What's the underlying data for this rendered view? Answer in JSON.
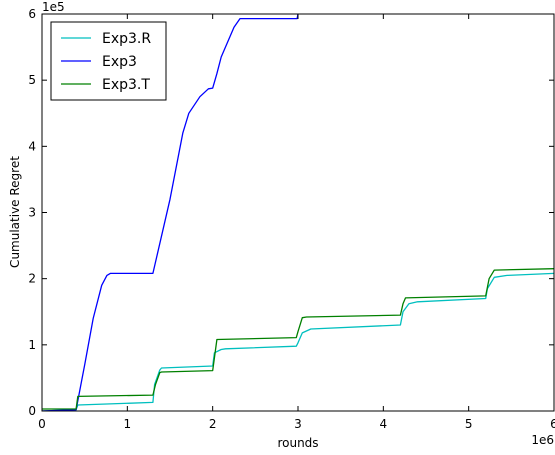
{
  "chart_data": {
    "type": "line",
    "xlabel": "rounds",
    "ylabel": "Cumulative Regret",
    "x_offset_label": "1e6",
    "y_offset_label": "1e5",
    "x_scale": 1000000,
    "y_scale": 100000,
    "xlim": [
      0,
      6000000
    ],
    "ylim": [
      0,
      600000
    ],
    "x_ticks": [
      0,
      1000000,
      2000000,
      3000000,
      4000000,
      5000000,
      6000000
    ],
    "x_tick_labels": [
      "0",
      "1",
      "2",
      "3",
      "4",
      "5",
      "6"
    ],
    "y_ticks": [
      0,
      100000,
      200000,
      300000,
      400000,
      500000,
      600000
    ],
    "y_tick_labels": [
      "0",
      "1",
      "2",
      "3",
      "4",
      "5",
      "6"
    ],
    "grid": false,
    "legend_position": "upper-left",
    "series": [
      {
        "name": "Exp3.R",
        "color": "#00bfbf",
        "points": [
          [
            0,
            0
          ],
          [
            400000,
            2000
          ],
          [
            420000,
            9000
          ],
          [
            1300000,
            13000
          ],
          [
            1320000,
            40000
          ],
          [
            1380000,
            62000
          ],
          [
            1400000,
            65000
          ],
          [
            2000000,
            68000
          ],
          [
            2020000,
            88000
          ],
          [
            2100000,
            93000
          ],
          [
            2150000,
            94000
          ],
          [
            2980000,
            98000
          ],
          [
            3000000,
            103000
          ],
          [
            3050000,
            118000
          ],
          [
            3150000,
            124000
          ],
          [
            4200000,
            130000
          ],
          [
            4230000,
            150000
          ],
          [
            4300000,
            162000
          ],
          [
            4400000,
            165000
          ],
          [
            5200000,
            170000
          ],
          [
            5220000,
            185000
          ],
          [
            5300000,
            202000
          ],
          [
            5450000,
            205000
          ],
          [
            6000000,
            208000
          ]
        ]
      },
      {
        "name": "Exp3",
        "color": "#0000ff",
        "points": [
          [
            0,
            0
          ],
          [
            400000,
            2000
          ],
          [
            500000,
            70000
          ],
          [
            600000,
            140000
          ],
          [
            700000,
            190000
          ],
          [
            760000,
            205000
          ],
          [
            800000,
            208000
          ],
          [
            1300000,
            208000
          ],
          [
            1500000,
            320000
          ],
          [
            1650000,
            420000
          ],
          [
            1720000,
            450000
          ],
          [
            1850000,
            475000
          ],
          [
            1950000,
            487000
          ],
          [
            2000000,
            488000
          ],
          [
            2050000,
            510000
          ],
          [
            2100000,
            535000
          ],
          [
            2250000,
            580000
          ],
          [
            2320000,
            593000
          ],
          [
            2400000,
            593000
          ],
          [
            2990000,
            593000
          ],
          [
            3000000,
            600000
          ]
        ]
      },
      {
        "name": "Exp3.T",
        "color": "#008000",
        "points": [
          [
            0,
            3000
          ],
          [
            400000,
            3000
          ],
          [
            420000,
            22000
          ],
          [
            1300000,
            24000
          ],
          [
            1330000,
            40000
          ],
          [
            1380000,
            58000
          ],
          [
            1400000,
            59000
          ],
          [
            2000000,
            61000
          ],
          [
            2050000,
            108000
          ],
          [
            2980000,
            111000
          ],
          [
            3000000,
            120000
          ],
          [
            3050000,
            141000
          ],
          [
            3100000,
            142000
          ],
          [
            4200000,
            145000
          ],
          [
            4230000,
            162000
          ],
          [
            4260000,
            171000
          ],
          [
            5200000,
            174000
          ],
          [
            5240000,
            200000
          ],
          [
            5300000,
            213000
          ],
          [
            6000000,
            215000
          ]
        ]
      }
    ]
  }
}
